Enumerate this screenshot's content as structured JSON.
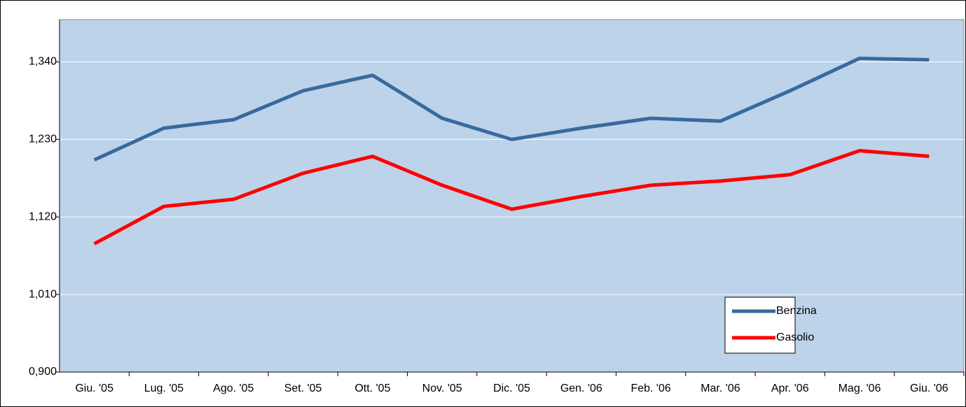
{
  "chart_data": {
    "type": "line",
    "categories": [
      "Giu. '05",
      "Lug. '05",
      "Ago. '05",
      "Set. '05",
      "Ott. '05",
      "Nov. '05",
      "Dic. '05",
      "Gen. '06",
      "Feb. '06",
      "Mar. '06",
      "Apr. '06",
      "Mag. '06",
      "Giu. '06"
    ],
    "series": [
      {
        "name": "Benzina",
        "color": "#386a9c",
        "values": [
          1.201,
          1.246,
          1.258,
          1.299,
          1.321,
          1.26,
          1.23,
          1.246,
          1.26,
          1.256,
          1.299,
          1.345,
          1.343
        ]
      },
      {
        "name": "Gasolio",
        "color": "#ff0000",
        "values": [
          1.082,
          1.135,
          1.145,
          1.182,
          1.206,
          1.165,
          1.131,
          1.149,
          1.165,
          1.171,
          1.18,
          1.214,
          1.206
        ]
      }
    ],
    "ylim": [
      0.9,
      1.4
    ],
    "yticks": [
      {
        "value": 0.9,
        "label": "0,900"
      },
      {
        "value": 1.01,
        "label": "1,010"
      },
      {
        "value": 1.12,
        "label": "1,120"
      },
      {
        "value": 1.23,
        "label": "1,230"
      },
      {
        "value": 1.34,
        "label": "1,340"
      }
    ],
    "grid": true,
    "legend_position": "lower right"
  }
}
